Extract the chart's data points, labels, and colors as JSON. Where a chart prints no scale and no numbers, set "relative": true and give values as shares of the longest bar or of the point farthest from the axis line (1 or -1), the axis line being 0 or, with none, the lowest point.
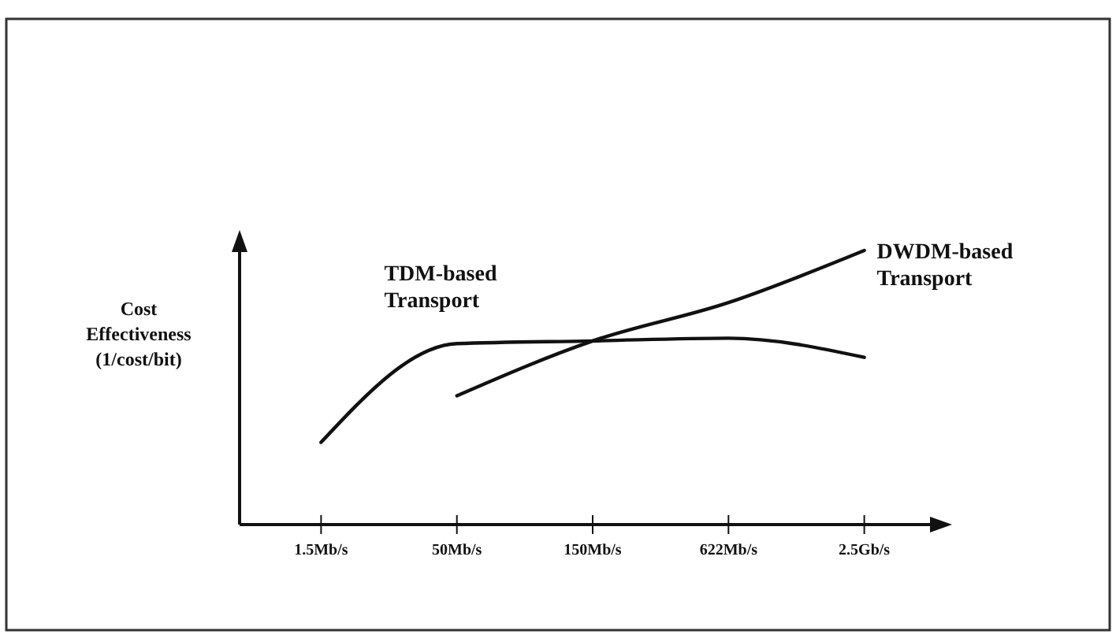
{
  "chart_data": {
    "type": "line",
    "relative": true,
    "ylabel": "Cost\nEffectiveness\n(1/cost/bit)",
    "categories": [
      "1.5Mb/s",
      "50Mb/s",
      "150Mb/s",
      "622Mb/s",
      "2.5Gb/s"
    ],
    "series": [
      {
        "name": "TDM-based\nTransport",
        "color": "#111111",
        "values": [
          0.3,
          0.66,
          0.67,
          0.68,
          0.61
        ]
      },
      {
        "name": "DWDM-based\nTransport",
        "color": "#111111",
        "values": [
          null,
          0.47,
          0.67,
          0.81,
          1.0
        ]
      }
    ]
  }
}
